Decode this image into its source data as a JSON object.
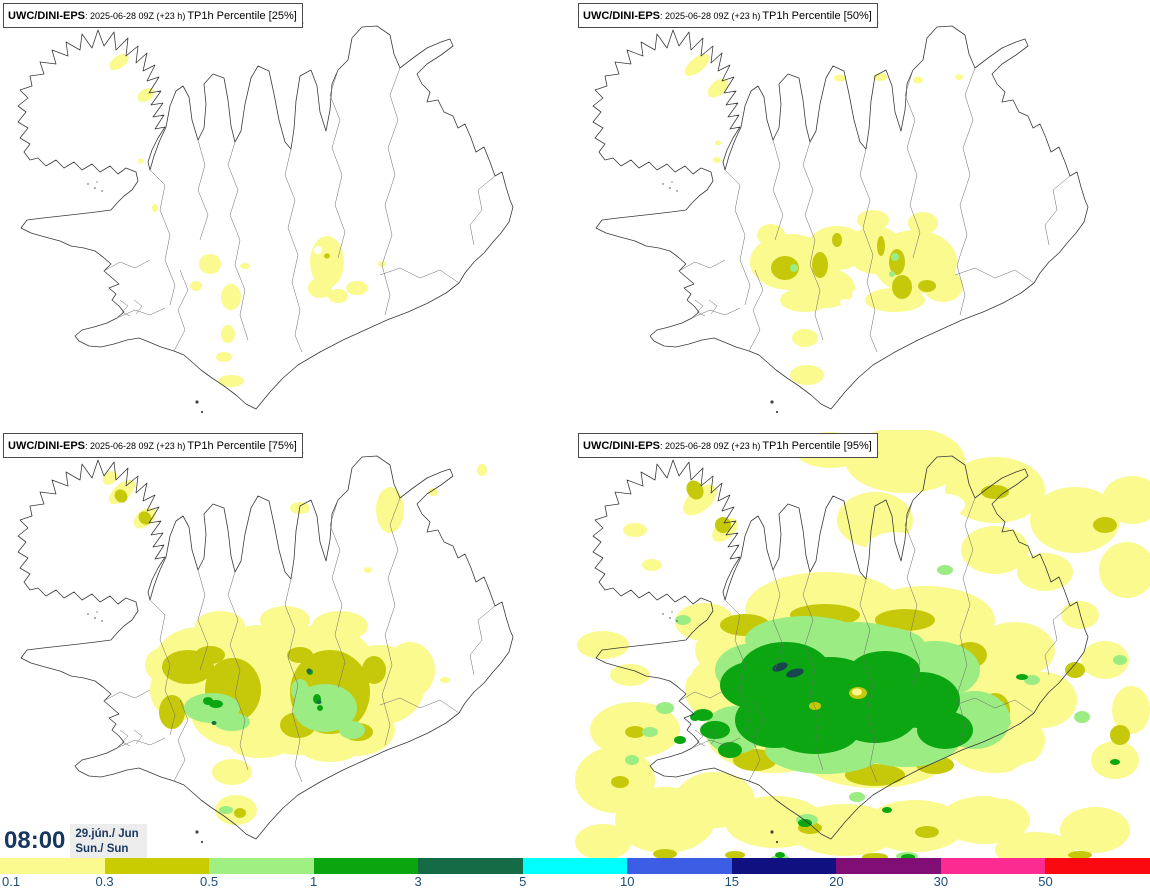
{
  "app": {
    "type": "weather-map-grid",
    "region": "Iceland"
  },
  "panels": [
    {
      "model": "UWC/DINI-EPS",
      "run": ": 2025-06-28 09Z (+23 h)",
      "field": "TP1h Percentile [25%]"
    },
    {
      "model": "UWC/DINI-EPS",
      "run": ": 2025-06-28 09Z (+23 h)",
      "field": "TP1h Percentile [50%]"
    },
    {
      "model": "UWC/DINI-EPS",
      "run": ": 2025-06-28 09Z (+23 h)",
      "field": "TP1h Percentile [75%]"
    },
    {
      "model": "UWC/DINI-EPS",
      "run": ": 2025-06-28 09Z (+23 h)",
      "field": "TP1h Percentile [95%]"
    }
  ],
  "clock": {
    "time": "08:00",
    "date": "29.jún./ Jun",
    "day": "Sun./ Sun",
    "text_color": "#17375E"
  },
  "colorbar": {
    "label_color": "#1E4C78",
    "segments": [
      {
        "label": "0.1",
        "color": "#FAFA8E"
      },
      {
        "label": "0.3",
        "color": "#C8CC00"
      },
      {
        "label": "0.5",
        "color": "#9FEF82"
      },
      {
        "label": "1",
        "color": "#0AA50F"
      },
      {
        "label": "3",
        "color": "#166B47"
      },
      {
        "label": "5",
        "color": "#00FFFF"
      },
      {
        "label": "10",
        "color": "#3B5EE4"
      },
      {
        "label": "15",
        "color": "#101080"
      },
      {
        "label": "20",
        "color": "#800E74"
      },
      {
        "label": "30",
        "color": "#FC2B92"
      },
      {
        "label": "50",
        "color": "#FA0A10"
      }
    ]
  },
  "map": {
    "coast_color": "#3a3a3a",
    "palette": {
      "pale_yellow": "#FAFA8E",
      "olive": "#C6C80A",
      "light_green": "#9BEC83",
      "green": "#0CA612",
      "dark_green": "#15704A",
      "dark_teal": "#17464E"
    }
  }
}
